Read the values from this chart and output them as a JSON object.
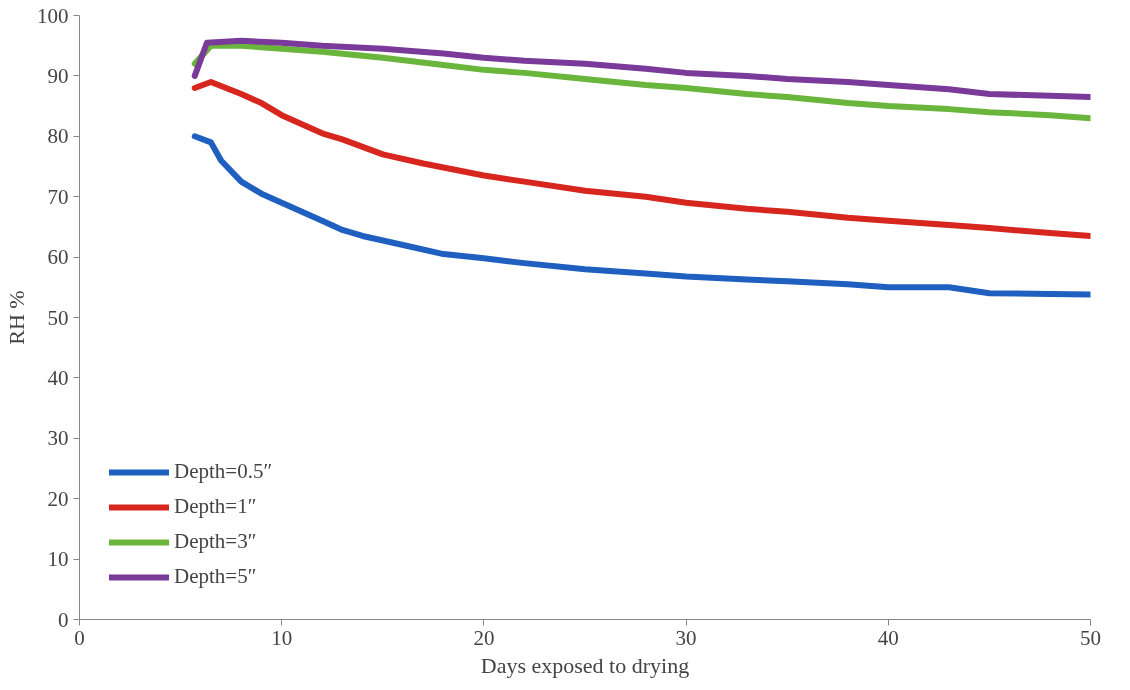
{
  "chart_data": {
    "type": "line",
    "xlabel": "Days exposed to drying",
    "ylabel": "RH %",
    "xlim": [
      0,
      50
    ],
    "ylim": [
      0,
      100
    ],
    "xticks": [
      0,
      10,
      20,
      30,
      40,
      50
    ],
    "yticks": [
      0,
      10,
      20,
      30,
      40,
      50,
      60,
      70,
      80,
      90,
      100
    ],
    "grid": false,
    "legend": "bottom left",
    "marker": "none",
    "line_style": "solid",
    "series": [
      {
        "name": "Depth=0.5″",
        "color": "#1f5fbf",
        "x": [
          5.7,
          6.5,
          7,
          8,
          9,
          10,
          11,
          12,
          13,
          14,
          16,
          18,
          20,
          22,
          25,
          28,
          30,
          33,
          35,
          38,
          40,
          43,
          45,
          48,
          50
        ],
        "values": [
          80,
          79,
          76,
          72.5,
          70.5,
          69,
          67.5,
          66,
          64.5,
          63.5,
          62,
          60.5,
          59.8,
          59,
          58,
          57.3,
          56.8,
          56.3,
          56,
          55.5,
          55,
          55,
          54,
          53.9,
          53.8
        ]
      },
      {
        "name": "Depth=1″",
        "color": "#d7261e",
        "x": [
          5.7,
          6.5,
          8,
          9,
          10,
          11,
          12,
          13,
          15,
          17,
          20,
          22,
          25,
          28,
          30,
          33,
          35,
          38,
          40,
          43,
          45,
          48,
          50
        ],
        "values": [
          88,
          89,
          87,
          85.5,
          83.5,
          82,
          80.5,
          79.5,
          77,
          75.5,
          73.5,
          72.5,
          71,
          70,
          69,
          68,
          67.5,
          66.5,
          66,
          65.3,
          64.8,
          64,
          63.5
        ]
      },
      {
        "name": "Depth=3″",
        "color": "#6ab53c",
        "x": [
          5.7,
          6.5,
          8,
          10,
          12,
          15,
          18,
          20,
          22,
          25,
          28,
          30,
          33,
          35,
          38,
          40,
          43,
          45,
          48,
          50
        ],
        "values": [
          92,
          95,
          95,
          94.5,
          94,
          93,
          91.8,
          91,
          90.5,
          89.5,
          88.5,
          88,
          87,
          86.5,
          85.5,
          85,
          84.5,
          84,
          83.5,
          83
        ]
      },
      {
        "name": "Depth=5″",
        "color": "#7a3a9a",
        "x": [
          5.7,
          6.3,
          8,
          10,
          12,
          15,
          18,
          20,
          22,
          25,
          28,
          30,
          33,
          35,
          38,
          40,
          43,
          45,
          48,
          50
        ],
        "values": [
          90,
          95.5,
          95.8,
          95.5,
          95,
          94.5,
          93.7,
          93,
          92.5,
          92,
          91.2,
          90.5,
          90,
          89.5,
          89,
          88.5,
          87.8,
          87,
          86.7,
          86.5
        ]
      }
    ]
  }
}
